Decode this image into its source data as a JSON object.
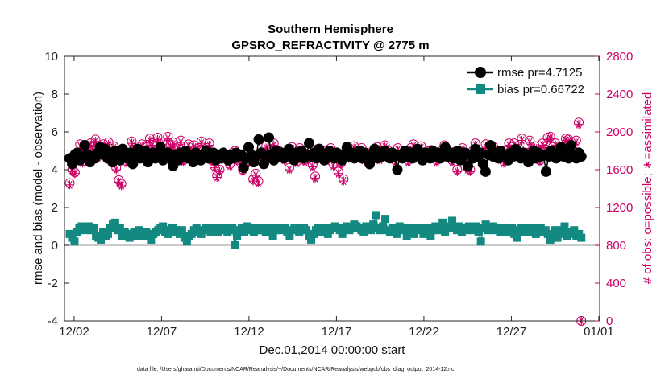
{
  "chart_data": {
    "type": "line",
    "title": "Southern Hemisphere",
    "subtitle": "GPSRO_REFRACTIVITY @ 2775 m",
    "xlabel": "Dec.01,2014 00:00:00 start",
    "ylabel": "rmse and bias (model - observation)",
    "ylabel_right": "# of obs: o=possible; ∗=assimilated",
    "footnote": "data file: /Users/gharamti/Documents/NCAR/Reanalysis/~/Documents/NCAR/Reanalysis/webpub/obs_diag_output_2014-12.nc",
    "x_ticks": [
      "12/02",
      "12/07",
      "12/12",
      "12/17",
      "12/22",
      "12/27",
      "01/01"
    ],
    "x_tick_days": [
      1,
      6,
      11,
      16,
      21,
      26,
      31
    ],
    "xlim": [
      0.45,
      31.05
    ],
    "ylim": [
      -4,
      10
    ],
    "y_ticks": [
      "-4",
      "-2",
      "0",
      "2",
      "4",
      "6",
      "8",
      "10"
    ],
    "ylim_right": [
      0,
      2800
    ],
    "y_ticks_right": [
      "0",
      "400",
      "800",
      "1200",
      "1600",
      "2000",
      "2400",
      "2800"
    ],
    "legend_position": "top-right",
    "colors": {
      "rmse": "#000000",
      "bias": "#128a82",
      "obs": "#cc0066",
      "zero_line": "#aaaaaa"
    },
    "series": [
      {
        "name": "rmse pr=4.7125",
        "marker": "circle",
        "values": [
          4.6,
          4.3,
          4.8,
          4.9,
          4.5,
          4.7,
          5.3,
          4.8,
          4.4,
          4.7,
          4.6,
          4.9,
          5.2,
          4.8,
          5.1,
          4.6,
          4.9,
          4.4,
          5.0,
          4.7,
          4.5,
          5.1,
          4.8,
          4.6,
          4.9,
          4.3,
          4.7,
          5.1,
          4.6,
          4.8,
          5.0,
          4.4,
          4.7,
          4.9,
          4.6,
          4.8,
          5.2,
          4.5,
          4.7,
          4.9,
          4.6,
          4.2,
          4.8,
          4.5,
          4.9,
          4.7,
          5.0,
          4.6,
          4.8,
          4.4,
          4.9,
          4.7,
          4.5,
          4.8,
          5.0,
          4.6,
          4.7,
          4.9,
          4.5,
          4.8,
          4.6,
          4.9,
          4.7,
          4.5,
          4.8,
          4.6,
          4.9,
          4.7,
          4.8,
          4.1,
          4.6,
          5.2,
          4.8,
          4.4,
          4.7,
          5.6,
          4.9,
          4.3,
          4.6,
          5.7,
          4.8,
          4.5,
          5.0,
          4.7,
          4.9,
          4.6,
          4.8,
          5.1,
          4.7,
          4.5,
          4.9,
          4.7,
          5.0,
          4.6,
          4.8,
          5.4,
          4.7,
          4.9,
          4.6,
          5.1,
          4.8,
          4.5,
          4.7,
          5.0,
          4.8,
          4.6,
          4.9,
          4.7,
          4.5,
          4.8,
          5.2,
          4.7,
          4.9,
          4.6,
          4.8,
          5.0,
          4.6,
          4.9,
          4.7,
          4.3,
          4.8,
          5.1,
          4.6,
          4.9,
          4.7,
          5.0,
          4.8,
          4.6,
          4.9,
          4.7,
          4.0,
          4.8,
          4.6,
          5.0,
          4.7,
          4.9,
          4.6,
          4.8,
          5.1,
          4.7,
          4.5,
          4.9,
          4.8,
          4.6,
          5.0,
          4.7,
          4.9,
          4.6,
          4.8,
          5.2,
          4.7,
          4.9,
          4.6,
          4.8,
          5.0,
          4.5,
          4.7,
          4.9,
          4.2,
          4.8,
          4.6,
          5.1,
          4.7,
          4.9,
          4.3,
          3.9,
          4.8,
          5.3,
          4.7,
          4.9,
          4.6,
          5.0,
          4.8,
          4.7,
          4.5,
          4.9,
          4.7,
          5.1,
          4.8,
          4.6,
          4.9,
          4.7,
          4.4,
          4.8,
          5.0,
          4.6,
          4.9,
          4.7,
          4.8,
          3.9,
          4.7,
          5.0,
          4.8,
          4.6,
          4.9,
          5.2,
          4.7,
          4.9,
          4.6,
          5.3,
          4.8,
          4.6,
          4.9,
          4.7
        ]
      },
      {
        "name": "bias pr=0.66722",
        "marker": "square",
        "values": [
          0.6,
          0.4,
          0.2,
          0.7,
          0.9,
          1.0,
          0.8,
          0.9,
          1.0,
          0.8,
          0.9,
          0.5,
          0.4,
          0.3,
          0.7,
          0.5,
          0.6,
          0.9,
          1.1,
          1.2,
          0.8,
          0.9,
          0.5,
          0.7,
          0.6,
          0.4,
          0.6,
          0.7,
          0.5,
          0.8,
          0.6,
          0.5,
          0.7,
          0.5,
          0.3,
          0.6,
          0.7,
          0.8,
          0.9,
          1.0,
          0.7,
          0.6,
          0.8,
          0.9,
          0.7,
          0.8,
          0.6,
          0.8,
          0.4,
          0.2,
          0.5,
          0.6,
          0.8,
          0.9,
          0.7,
          0.6,
          0.8,
          0.9,
          0.8,
          0.7,
          0.9,
          0.8,
          0.7,
          0.9,
          0.8,
          0.9,
          0.7,
          0.8,
          0.9,
          0.0,
          0.5,
          0.8,
          0.9,
          0.7,
          1.0,
          0.9,
          0.8,
          0.7,
          0.9,
          0.8,
          0.8,
          0.9,
          0.7,
          0.8,
          0.9,
          0.5,
          0.8,
          0.9,
          0.9,
          0.8,
          0.9,
          0.7,
          0.5,
          0.8,
          0.9,
          0.9,
          0.7,
          0.8,
          0.9,
          0.8,
          0.5,
          0.3,
          0.6,
          0.8,
          0.9,
          0.7,
          0.8,
          0.9,
          0.6,
          0.8,
          0.9,
          1.0,
          0.9,
          0.8,
          0.6,
          0.9,
          1.0,
          0.8,
          0.9,
          1.1,
          1.0,
          0.9,
          0.8,
          0.7,
          1.0,
          0.9,
          0.8,
          1.1,
          1.6,
          0.9,
          0.8,
          1.0,
          1.4,
          0.8,
          0.7,
          0.9,
          0.8,
          0.6,
          1.0,
          0.9,
          0.8,
          0.5,
          0.9,
          0.8,
          0.6,
          0.9,
          0.8,
          0.9,
          0.6,
          0.7,
          0.9,
          0.5,
          0.8,
          1.0,
          0.8,
          0.9,
          1.2,
          0.7,
          0.9,
          1.0,
          1.3,
          0.9,
          0.8,
          1.0,
          0.7,
          0.9,
          0.8,
          1.0,
          0.9,
          0.8,
          1.0,
          0.7,
          0.2,
          0.9,
          1.1,
          0.8,
          0.9,
          1.0,
          0.8,
          0.9,
          0.7,
          0.8,
          0.9,
          0.7,
          0.8,
          0.9,
          0.6,
          0.4,
          0.8,
          0.9,
          0.7,
          0.9,
          0.8,
          0.7,
          0.9,
          0.6,
          0.8,
          0.9,
          0.7,
          0.8,
          0.6,
          0.3,
          0.5,
          0.8,
          0.4,
          0.8,
          0.6,
          1.0,
          0.5,
          0.7,
          0.6,
          0.8,
          0.5,
          0.6,
          0.4
        ]
      },
      {
        "name": "# obs possible",
        "marker": "open-circle",
        "axis": "right",
        "values": [
          1460,
          1600,
          1570,
          1730,
          1870,
          1690,
          1760,
          1830,
          1880,
          1840,
          1920,
          1750,
          1800,
          1870,
          1830,
          1890,
          1700,
          1850,
          1620,
          1490,
          1450,
          1760,
          1690,
          1750,
          1900,
          1830,
          1720,
          1800,
          1870,
          1780,
          1840,
          1930,
          1880,
          1760,
          1940,
          1820,
          1890,
          1750,
          1950,
          1860,
          1890,
          1800,
          1840,
          1910,
          1700,
          1800,
          1870,
          1780,
          1860,
          1750,
          1830,
          1900,
          1760,
          1830,
          1880,
          1700,
          1640,
          1540,
          1600,
          1730,
          1740,
          1700,
          1660,
          1780,
          1800,
          1720,
          1680,
          1600,
          1660,
          1820,
          1700,
          1500,
          1560,
          1480,
          1700,
          1780,
          1850,
          1720,
          1820,
          1880,
          1740,
          1800,
          1740,
          1720,
          1760,
          1620,
          1840,
          1780,
          1690,
          1830,
          1760,
          1700,
          1730,
          1780,
          1650,
          1530,
          1820,
          1740,
          1770,
          1800,
          1720,
          1830,
          1660,
          1780,
          1580,
          1670,
          1500,
          1820,
          1740,
          1770,
          1850,
          1800,
          1760,
          1830,
          1720,
          1780,
          1670,
          1750,
          1800,
          1840,
          1720,
          1780,
          1860,
          1810,
          1740,
          1770,
          1700,
          1830,
          1760,
          1740,
          1780,
          1700,
          1830,
          1870,
          1740,
          1800,
          1850,
          1720,
          1780,
          1800,
          1810,
          1780,
          1700,
          1760,
          1800,
          1860,
          1740,
          1780,
          1700,
          1790,
          1600,
          1780,
          1830,
          1740,
          1620,
          1600,
          1800,
          1880,
          1740,
          1750,
          1780,
          1870,
          1790,
          1760,
          1840,
          1780,
          1800,
          1740,
          1690,
          1800,
          1880,
          1840,
          1880,
          1760,
          1820,
          1930,
          1780,
          1780,
          1910,
          1810,
          1850,
          1800,
          1700,
          1880,
          1820,
          1940,
          1950,
          1840,
          1880,
          1760,
          1840,
          1800,
          1930,
          1920,
          1860,
          1800,
          1910,
          2100,
          0
        ]
      },
      {
        "name": "# obs assimilated",
        "marker": "asterisk",
        "axis": "right",
        "values": [
          1440,
          1580,
          1560,
          1710,
          1850,
          1670,
          1740,
          1810,
          1860,
          1820,
          1900,
          1730,
          1780,
          1850,
          1810,
          1870,
          1680,
          1830,
          1600,
          1470,
          1430,
          1740,
          1670,
          1730,
          1880,
          1810,
          1700,
          1780,
          1850,
          1760,
          1820,
          1910,
          1860,
          1740,
          1920,
          1800,
          1870,
          1730,
          1930,
          1840,
          1870,
          1780,
          1820,
          1890,
          1680,
          1780,
          1850,
          1760,
          1840,
          1730,
          1810,
          1880,
          1740,
          1810,
          1860,
          1680,
          1620,
          1520,
          1580,
          1710,
          1720,
          1680,
          1640,
          1760,
          1780,
          1700,
          1660,
          1580,
          1640,
          1800,
          1680,
          1480,
          1540,
          1460,
          1680,
          1760,
          1830,
          1700,
          1800,
          1860,
          1720,
          1780,
          1720,
          1700,
          1740,
          1600,
          1820,
          1760,
          1670,
          1810,
          1740,
          1680,
          1710,
          1760,
          1630,
          1510,
          1800,
          1720,
          1750,
          1780,
          1700,
          1810,
          1640,
          1760,
          1560,
          1650,
          1480,
          1800,
          1720,
          1750,
          1830,
          1780,
          1740,
          1810,
          1700,
          1760,
          1650,
          1730,
          1780,
          1820,
          1700,
          1760,
          1840,
          1790,
          1720,
          1750,
          1680,
          1810,
          1740,
          1720,
          1760,
          1680,
          1810,
          1850,
          1720,
          1780,
          1830,
          1700,
          1760,
          1780,
          1790,
          1760,
          1680,
          1740,
          1780,
          1840,
          1720,
          1760,
          1680,
          1770,
          1580,
          1760,
          1810,
          1720,
          1600,
          1580,
          1780,
          1860,
          1720,
          1730,
          1760,
          1850,
          1770,
          1740,
          1820,
          1760,
          1780,
          1720,
          1670,
          1780,
          1860,
          1820,
          1860,
          1740,
          1800,
          1910,
          1760,
          1760,
          1890,
          1790,
          1830,
          1780,
          1680,
          1860,
          1800,
          1920,
          1930,
          1820,
          1860,
          1740,
          1820,
          1780,
          1910,
          1900,
          1840,
          1780,
          1890,
          2080,
          0
        ]
      }
    ]
  }
}
